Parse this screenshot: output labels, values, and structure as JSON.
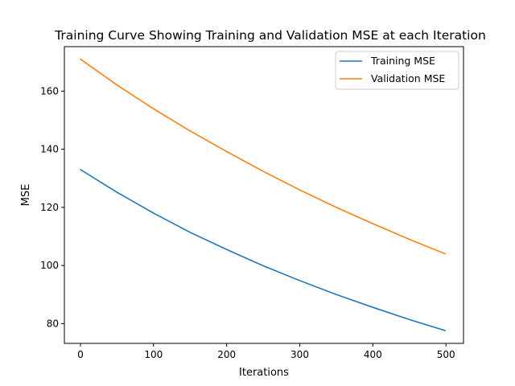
{
  "chart_data": {
    "type": "line",
    "title": "Training Curve Showing Training and Validation MSE at each Iteration",
    "xlabel": "Iterations",
    "ylabel": "MSE",
    "xlim": [
      -22,
      524
    ],
    "ylim": [
      73.2,
      175.3
    ],
    "xticks": [
      0,
      100,
      200,
      300,
      400,
      500
    ],
    "yticks": [
      80,
      100,
      120,
      140,
      160
    ],
    "grid": false,
    "legend_position": "top-right",
    "x": [
      0,
      50,
      100,
      150,
      200,
      250,
      300,
      350,
      400,
      450,
      499
    ],
    "series": [
      {
        "name": "Training MSE",
        "color": "#1f77b4",
        "values": [
          133.0,
          125.2,
          118.0,
          111.4,
          105.5,
          99.9,
          94.8,
          90.0,
          85.6,
          81.4,
          77.6
        ]
      },
      {
        "name": "Validation MSE",
        "color": "#ff7f0e",
        "values": [
          171.0,
          162.1,
          153.9,
          146.3,
          139.2,
          132.4,
          126.0,
          120.0,
          114.4,
          109.0,
          104.0
        ]
      }
    ]
  }
}
